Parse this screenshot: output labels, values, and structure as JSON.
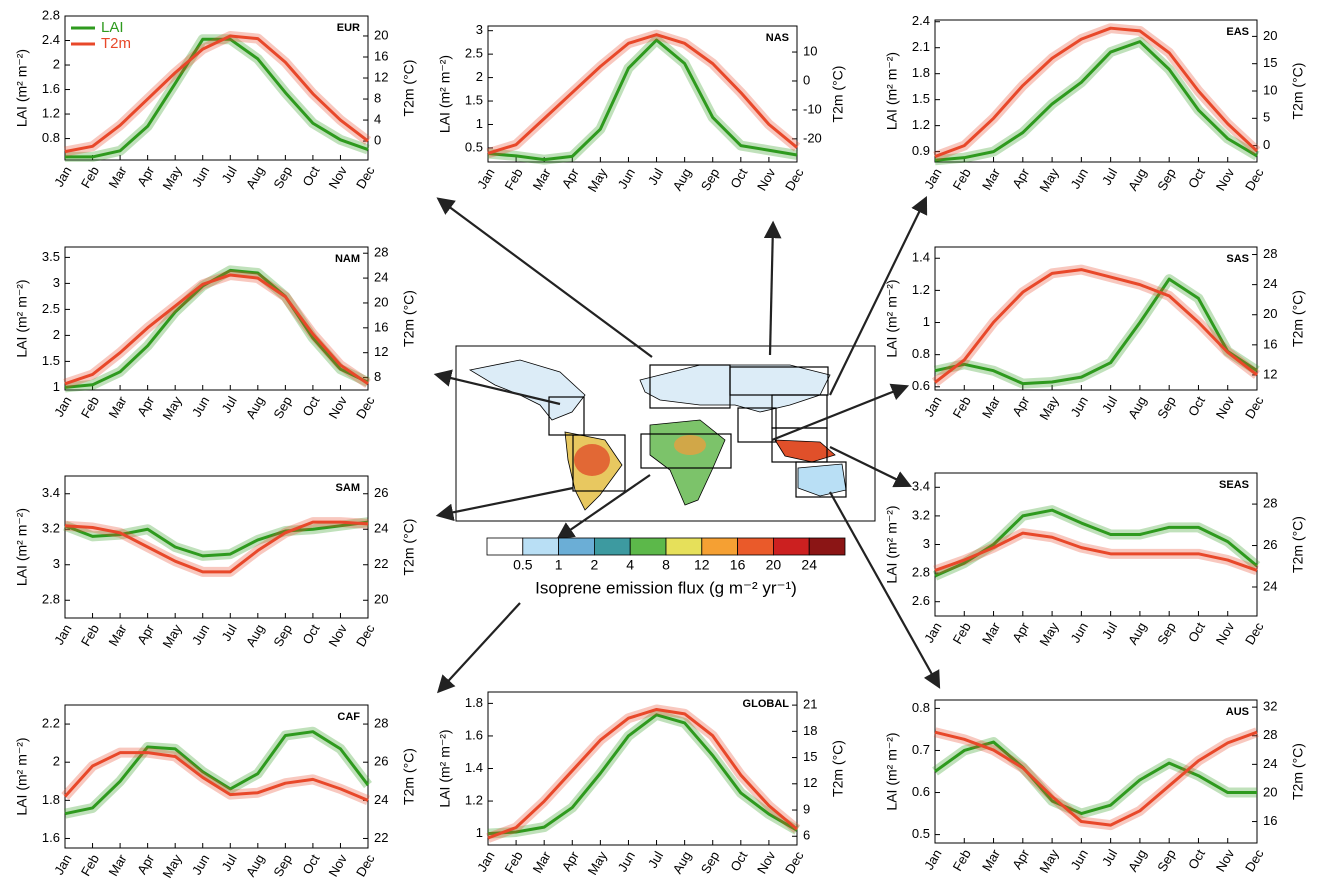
{
  "chart_data": [
    {
      "type": "line",
      "title": "EUR",
      "ylabel": "LAI (m² m⁻²)",
      "y2label": "T2m (°C)",
      "legend": "upper left",
      "categories": [
        "Jan",
        "Feb",
        "Mar",
        "Apr",
        "May",
        "Jun",
        "Jul",
        "Aug",
        "Sep",
        "Oct",
        "Nov",
        "Dec"
      ],
      "ylim": [
        0.45,
        2.8
      ],
      "yticks": [
        0.8,
        1.2,
        1.6,
        2.0,
        2.4,
        2.8
      ],
      "y2lim": [
        -3.6,
        23.8
      ],
      "y2ticks": [
        0,
        4,
        8,
        12,
        16,
        20
      ],
      "series": [
        {
          "name": "LAI",
          "color": "#2e9a1e",
          "axis": "y",
          "values": [
            0.5,
            0.5,
            0.6,
            1.0,
            1.7,
            2.42,
            2.42,
            2.1,
            1.55,
            1.05,
            0.78,
            0.62
          ]
        },
        {
          "name": "T2m",
          "color": "#e8482a",
          "axis": "y2",
          "values": [
            -2,
            -1,
            3,
            8,
            13,
            17.5,
            20,
            19.5,
            15,
            9,
            4,
            0
          ]
        }
      ]
    },
    {
      "type": "line",
      "title": "NAS",
      "ylabel": "LAI (m² m⁻²)",
      "y2label": "T2m (°C)",
      "categories": [
        "Jan",
        "Feb",
        "Mar",
        "Apr",
        "May",
        "Jun",
        "Jul",
        "Aug",
        "Sep",
        "Oct",
        "Nov",
        "Dec"
      ],
      "ylim": [
        0.2,
        3.1
      ],
      "yticks": [
        0.5,
        1.0,
        1.5,
        2.0,
        2.5,
        3.0
      ],
      "y2lim": [
        -28,
        19
      ],
      "y2ticks": [
        -20,
        -10,
        0,
        10
      ],
      "series": [
        {
          "color": "#2e9a1e",
          "axis": "y",
          "values": [
            0.38,
            0.33,
            0.25,
            0.32,
            0.9,
            2.2,
            2.8,
            2.3,
            1.15,
            0.55,
            0.45,
            0.35
          ]
        },
        {
          "color": "#e8482a",
          "axis": "y2",
          "values": [
            -25,
            -22,
            -13,
            -4,
            5,
            13,
            16,
            13,
            6,
            -4,
            -15,
            -23
          ]
        }
      ]
    },
    {
      "type": "line",
      "title": "EAS",
      "ylabel": "LAI (m² m⁻²)",
      "y2label": "T2m (°C)",
      "categories": [
        "Jan",
        "Feb",
        "Mar",
        "Apr",
        "May",
        "Jun",
        "Jul",
        "Aug",
        "Sep",
        "Oct",
        "Nov",
        "Dec"
      ],
      "ylim": [
        0.78,
        2.42
      ],
      "yticks": [
        0.9,
        1.2,
        1.5,
        1.8,
        2.1,
        2.4
      ],
      "y2lim": [
        -3,
        23
      ],
      "y2ticks": [
        0,
        5,
        10,
        15,
        20
      ],
      "series": [
        {
          "color": "#2e9a1e",
          "axis": "y",
          "values": [
            0.8,
            0.83,
            0.9,
            1.12,
            1.45,
            1.7,
            2.05,
            2.17,
            1.85,
            1.38,
            1.05,
            0.85
          ]
        },
        {
          "color": "#e8482a",
          "axis": "y2",
          "values": [
            -2,
            0,
            5,
            11,
            16,
            19.5,
            21.5,
            21,
            17,
            10,
            4,
            -1
          ]
        }
      ]
    },
    {
      "type": "line",
      "title": "NAM",
      "ylabel": "LAI (m² m⁻²)",
      "y2label": "T2m (°C)",
      "categories": [
        "Jan",
        "Feb",
        "Mar",
        "Apr",
        "May",
        "Jun",
        "Jul",
        "Aug",
        "Sep",
        "Oct",
        "Nov",
        "Dec"
      ],
      "ylim": [
        0.95,
        3.7
      ],
      "yticks": [
        1.0,
        1.5,
        2.0,
        2.5,
        3.0,
        3.5
      ],
      "y2lim": [
        6,
        29
      ],
      "y2ticks": [
        8,
        12,
        16,
        20,
        24,
        28
      ],
      "series": [
        {
          "color": "#2e9a1e",
          "axis": "y",
          "values": [
            1.0,
            1.05,
            1.3,
            1.8,
            2.45,
            2.95,
            3.25,
            3.2,
            2.75,
            1.95,
            1.35,
            1.1
          ]
        },
        {
          "color": "#e8482a",
          "axis": "y2",
          "values": [
            7,
            8.5,
            12,
            16,
            19.5,
            23,
            24.5,
            24,
            21,
            15,
            10,
            7
          ]
        }
      ]
    },
    {
      "type": "line",
      "title": "SAS",
      "ylabel": "LAI (m² m⁻²)",
      "y2label": "T2m (°C)",
      "categories": [
        "Jan",
        "Feb",
        "Mar",
        "Apr",
        "May",
        "Jun",
        "Jul",
        "Aug",
        "Sep",
        "Oct",
        "Nov",
        "Dec"
      ],
      "ylim": [
        0.58,
        1.47
      ],
      "yticks": [
        0.6,
        0.8,
        1.0,
        1.2,
        1.4
      ],
      "y2lim": [
        10,
        29
      ],
      "y2ticks": [
        12,
        16,
        20,
        24,
        28
      ],
      "series": [
        {
          "color": "#2e9a1e",
          "axis": "y",
          "values": [
            0.7,
            0.74,
            0.7,
            0.62,
            0.63,
            0.66,
            0.75,
            1.0,
            1.27,
            1.15,
            0.82,
            0.7
          ]
        },
        {
          "color": "#e8482a",
          "axis": "y2",
          "values": [
            11,
            14,
            19,
            23,
            25.5,
            26,
            25,
            24,
            22.5,
            19,
            15,
            12
          ]
        }
      ]
    },
    {
      "type": "line",
      "title": "SAM",
      "ylabel": "LAI (m² m⁻²)",
      "y2label": "T2m (°C)",
      "categories": [
        "Jan",
        "Feb",
        "Mar",
        "Apr",
        "May",
        "Jun",
        "Jul",
        "Aug",
        "Sep",
        "Oct",
        "Nov",
        "Dec"
      ],
      "ylim": [
        2.7,
        3.5
      ],
      "yticks": [
        2.8,
        3.0,
        3.2,
        3.4
      ],
      "y2lim": [
        19,
        27
      ],
      "y2ticks": [
        20,
        22,
        24,
        26
      ],
      "series": [
        {
          "color": "#2e9a1e",
          "axis": "y",
          "values": [
            3.22,
            3.16,
            3.17,
            3.2,
            3.1,
            3.05,
            3.06,
            3.14,
            3.19,
            3.2,
            3.22,
            3.24
          ]
        },
        {
          "color": "#e8482a",
          "axis": "y2",
          "values": [
            24.2,
            24.1,
            23.8,
            23,
            22.2,
            21.6,
            21.6,
            22.8,
            23.8,
            24.4,
            24.4,
            24.3
          ]
        }
      ]
    },
    {
      "type": "line",
      "title": "SEAS",
      "ylabel": "LAI (m² m⁻²)",
      "y2label": "T2m (°C)",
      "categories": [
        "Jan",
        "Feb",
        "Mar",
        "Apr",
        "May",
        "Jun",
        "Jul",
        "Aug",
        "Sep",
        "Oct",
        "Nov",
        "Dec"
      ],
      "ylim": [
        2.5,
        3.5
      ],
      "yticks": [
        2.6,
        2.8,
        3.0,
        3.2,
        3.4
      ],
      "y2lim": [
        22.6,
        29.5
      ],
      "y2ticks": [
        24,
        26,
        28
      ],
      "series": [
        {
          "color": "#2e9a1e",
          "axis": "y",
          "values": [
            2.78,
            2.87,
            3.0,
            3.2,
            3.24,
            3.15,
            3.07,
            3.07,
            3.12,
            3.12,
            3.02,
            2.85
          ]
        },
        {
          "color": "#e8482a",
          "axis": "y2",
          "values": [
            24.8,
            25.3,
            25.9,
            26.6,
            26.4,
            25.9,
            25.6,
            25.6,
            25.6,
            25.6,
            25.3,
            24.8
          ]
        }
      ]
    },
    {
      "type": "line",
      "title": "CAF",
      "ylabel": "LAI (m² m⁻²)",
      "y2label": "T2m (°C)",
      "categories": [
        "Jan",
        "Feb",
        "Mar",
        "Apr",
        "May",
        "Jun",
        "Jul",
        "Aug",
        "Sep",
        "Oct",
        "Nov",
        "Dec"
      ],
      "ylim": [
        1.55,
        2.3
      ],
      "yticks": [
        1.6,
        1.8,
        2.0,
        2.2
      ],
      "y2lim": [
        21.5,
        29
      ],
      "y2ticks": [
        22,
        24,
        26,
        28
      ],
      "series": [
        {
          "color": "#2e9a1e",
          "axis": "y",
          "values": [
            1.73,
            1.76,
            1.9,
            2.08,
            2.07,
            1.95,
            1.86,
            1.94,
            2.14,
            2.16,
            2.07,
            1.88
          ]
        },
        {
          "color": "#e8482a",
          "axis": "y2",
          "values": [
            24.2,
            25.8,
            26.5,
            26.5,
            26.3,
            25.2,
            24.3,
            24.4,
            24.9,
            25.1,
            24.6,
            24.0
          ]
        }
      ]
    },
    {
      "type": "line",
      "title": "GLOBAL",
      "ylabel": "LAI (m² m⁻²)",
      "y2label": "T2m (°C)",
      "categories": [
        "Jan",
        "Feb",
        "Mar",
        "Apr",
        "May",
        "Jun",
        "Jul",
        "Aug",
        "Sep",
        "Oct",
        "Nov",
        "Dec"
      ],
      "ylim": [
        0.93,
        1.87
      ],
      "yticks": [
        1.0,
        1.2,
        1.4,
        1.6,
        1.8
      ],
      "y2lim": [
        5,
        22.5
      ],
      "y2ticks": [
        6,
        9,
        12,
        15,
        18,
        21
      ],
      "series": [
        {
          "color": "#2e9a1e",
          "axis": "y",
          "values": [
            1.0,
            1.01,
            1.04,
            1.16,
            1.37,
            1.6,
            1.73,
            1.68,
            1.48,
            1.25,
            1.12,
            1.02
          ]
        },
        {
          "color": "#e8482a",
          "axis": "y2",
          "values": [
            5.8,
            7,
            10,
            13.5,
            17,
            19.5,
            20.5,
            20,
            17.5,
            13,
            9.5,
            6.8
          ]
        }
      ]
    },
    {
      "type": "line",
      "title": "AUS",
      "ylabel": "LAI (m² m⁻²)",
      "y2label": "T2m (°C)",
      "categories": [
        "Jan",
        "Feb",
        "Mar",
        "Apr",
        "May",
        "Jun",
        "Jul",
        "Aug",
        "Sep",
        "Oct",
        "Nov",
        "Dec"
      ],
      "ylim": [
        0.48,
        0.82
      ],
      "yticks": [
        0.5,
        0.6,
        0.7,
        0.8
      ],
      "y2lim": [
        13,
        33
      ],
      "y2ticks": [
        16,
        20,
        24,
        28,
        32
      ],
      "series": [
        {
          "color": "#2e9a1e",
          "axis": "y",
          "values": [
            0.65,
            0.7,
            0.72,
            0.66,
            0.58,
            0.55,
            0.57,
            0.63,
            0.67,
            0.64,
            0.6,
            0.6
          ]
        },
        {
          "color": "#e8482a",
          "axis": "y2",
          "values": [
            28.5,
            27.5,
            26,
            23.5,
            19.5,
            16,
            15.5,
            17.5,
            21,
            24.5,
            27,
            28.5
          ]
        }
      ]
    }
  ],
  "colorbar": {
    "label": "Isoprene emission flux (g m⁻² yr⁻¹)",
    "ticks": [
      0.5,
      1,
      2,
      4,
      8,
      12,
      16,
      20,
      24
    ],
    "colors": [
      "#ffffff",
      "#b9dff5",
      "#6baed6",
      "#3d9aa0",
      "#5cb84a",
      "#e6e05a",
      "#f5a033",
      "#ea5a2a",
      "#cc2020",
      "#8b1515"
    ]
  }
}
